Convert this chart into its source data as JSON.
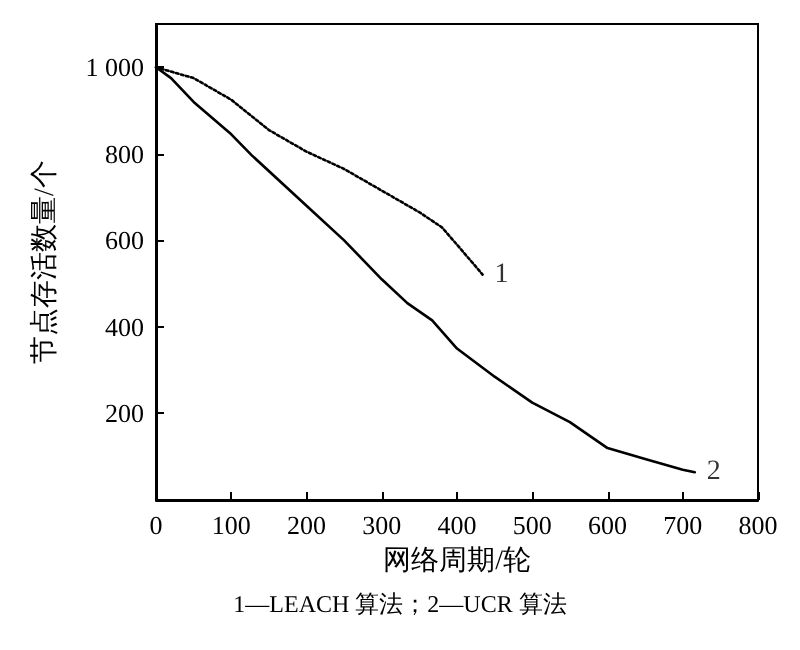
{
  "chart_data": {
    "type": "line",
    "xlabel": "网络周期/轮",
    "ylabel": "节点存活数量/个",
    "xlim": [
      0,
      800
    ],
    "xticks": [
      0,
      100,
      200,
      300,
      400,
      500,
      600,
      700,
      800
    ],
    "ylim": [
      0,
      1100
    ],
    "yticks": [
      200,
      400,
      600,
      {
        "value": 800,
        "label": "800"
      },
      {
        "value": 1000,
        "label": "1 000"
      }
    ],
    "grid": false,
    "marker": "none",
    "series": [
      {
        "color": "#000000",
        "line_style": "dotted",
        "x": [
          0,
          50,
          100,
          150,
          200,
          250,
          300,
          350,
          380,
          400,
          434
        ],
        "values": [
          1000,
          975,
          925,
          855,
          805,
          765,
          715,
          665,
          630,
          590,
          521
        ]
      },
      {
        "color": "#000000",
        "line_style": "solid",
        "x": [
          0,
          20,
          50,
          100,
          127,
          200,
          250,
          300,
          334,
          367,
          400,
          450,
          500,
          550,
          600,
          650,
          700,
          716
        ],
        "values": [
          1000,
          975,
          920,
          845,
          797,
          680,
          600,
          510,
          455,
          415,
          350,
          285,
          225,
          180,
          120,
          95,
          70,
          64
        ]
      }
    ],
    "annotations": [
      {
        "text": "1",
        "x": 434,
        "y": 521
      },
      {
        "text": "2",
        "x": 716,
        "y": 64
      },
      "1—LEACH 算法；2—UCR 算法"
    ]
  }
}
